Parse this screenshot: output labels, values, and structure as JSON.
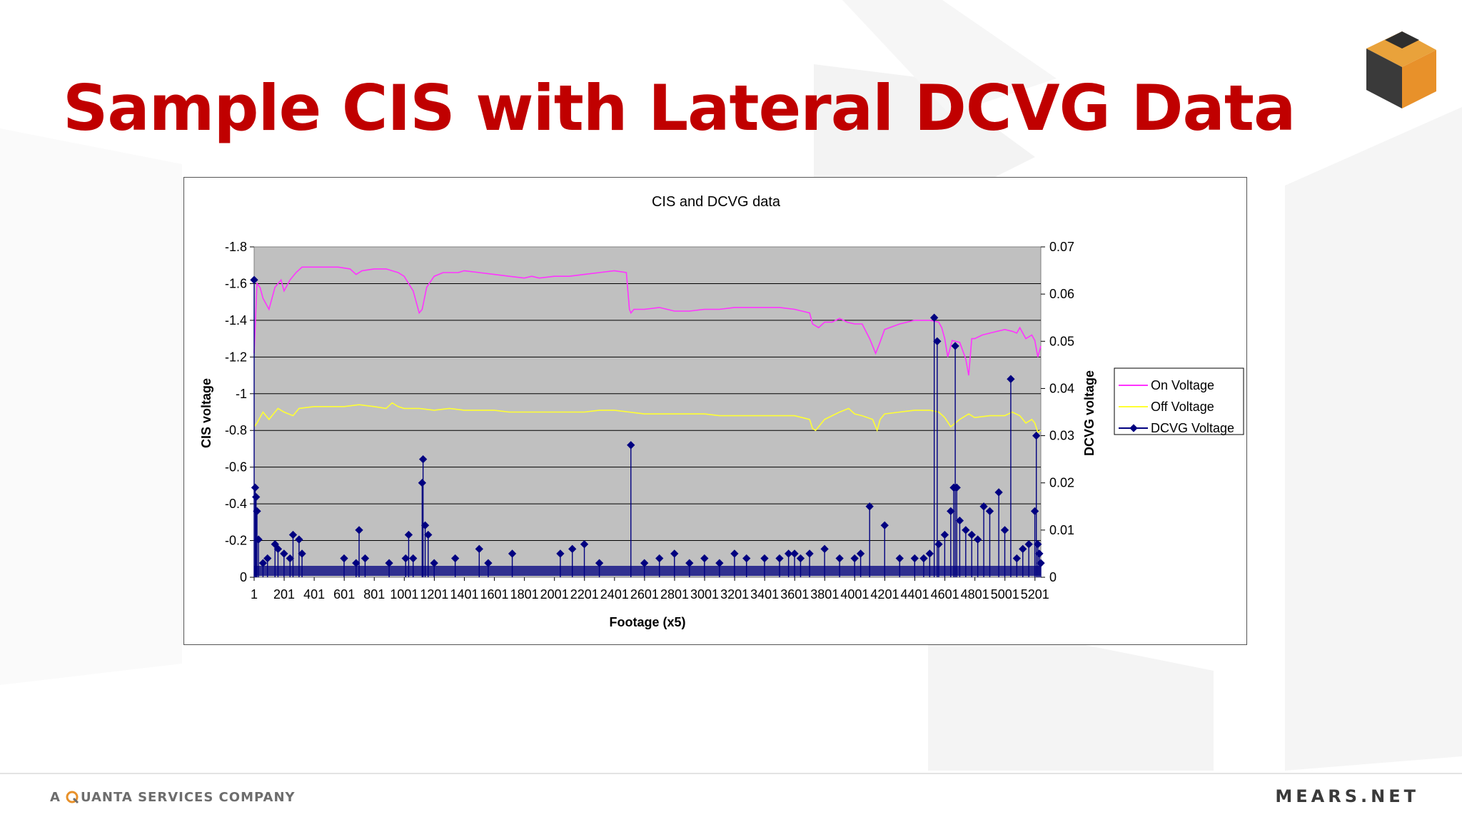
{
  "slide": {
    "title": "Sample CIS with Lateral DCVG Data",
    "footer_left_prefix": "A",
    "footer_left_company": "UANTA SERVICES COMPANY",
    "footer_right": "MEARS.NET"
  },
  "colors": {
    "title": "#c00000",
    "plot_bg": "#c0c0c0",
    "on_voltage": "#ff33ff",
    "off_voltage": "#ffff33",
    "dcvg_voltage": "#000080"
  },
  "icons": [
    "cube-logo-icon",
    "quanta-q-icon"
  ],
  "chart_data": {
    "type": "line",
    "title": "CIS and DCVG data",
    "xlabel": "Footage (x5)",
    "ylabel": "CIS voltage",
    "y2label": "DCVG voltage",
    "x_tick_labels": [
      "1",
      "201",
      "401",
      "601",
      "801",
      "1001",
      "1201",
      "1401",
      "1601",
      "1801",
      "2001",
      "2201",
      "2401",
      "2601",
      "2801",
      "3001",
      "3201",
      "3401",
      "3601",
      "3801",
      "4001",
      "4201",
      "4401",
      "4601",
      "4801",
      "5001",
      "5201"
    ],
    "x_range": [
      1,
      5240
    ],
    "y_range": [
      0,
      -1.8
    ],
    "y_ticks": [
      "-1.8",
      "-1.6",
      "-1.4",
      "-1.2",
      "-1",
      "-0.8",
      "-0.6",
      "-0.4",
      "-0.2",
      "0"
    ],
    "y2_range": [
      0,
      0.07
    ],
    "y2_ticks": [
      "0.07",
      "0.06",
      "0.05",
      "0.04",
      "0.03",
      "0.02",
      "0.01",
      "0"
    ],
    "grid": "horizontal",
    "legend_position": "right",
    "series": [
      {
        "name": "On Voltage",
        "axis": "left",
        "x": [
          1,
          20,
          40,
          60,
          100,
          140,
          180,
          200,
          240,
          280,
          320,
          400,
          480,
          560,
          640,
          680,
          720,
          800,
          880,
          960,
          1000,
          1060,
          1100,
          1120,
          1150,
          1200,
          1260,
          1300,
          1360,
          1400,
          1500,
          1600,
          1700,
          1800,
          1850,
          1900,
          2000,
          2100,
          2200,
          2300,
          2400,
          2480,
          2500,
          2510,
          2530,
          2600,
          2700,
          2800,
          2900,
          3000,
          3100,
          3200,
          3300,
          3400,
          3500,
          3600,
          3650,
          3700,
          3720,
          3760,
          3800,
          3850,
          3900,
          3950,
          4000,
          4050,
          4100,
          4140,
          4160,
          4200,
          4300,
          4400,
          4500,
          4560,
          4580,
          4600,
          4620,
          4650,
          4700,
          4740,
          4760,
          4780,
          4800,
          4850,
          4900,
          5000,
          5050,
          5080,
          5100,
          5140,
          5180,
          5200,
          5220,
          5240
        ],
        "values": [
          -1.22,
          -1.6,
          -1.58,
          -1.52,
          -1.46,
          -1.58,
          -1.62,
          -1.56,
          -1.62,
          -1.66,
          -1.69,
          -1.69,
          -1.69,
          -1.69,
          -1.68,
          -1.65,
          -1.67,
          -1.68,
          -1.68,
          -1.66,
          -1.64,
          -1.56,
          -1.44,
          -1.46,
          -1.58,
          -1.64,
          -1.66,
          -1.66,
          -1.66,
          -1.67,
          -1.66,
          -1.65,
          -1.64,
          -1.63,
          -1.64,
          -1.63,
          -1.64,
          -1.64,
          -1.65,
          -1.66,
          -1.67,
          -1.66,
          -1.46,
          -1.44,
          -1.46,
          -1.46,
          -1.47,
          -1.45,
          -1.45,
          -1.46,
          -1.46,
          -1.47,
          -1.47,
          -1.47,
          -1.47,
          -1.46,
          -1.45,
          -1.44,
          -1.38,
          -1.36,
          -1.39,
          -1.39,
          -1.41,
          -1.39,
          -1.38,
          -1.38,
          -1.3,
          -1.22,
          -1.26,
          -1.35,
          -1.38,
          -1.4,
          -1.4,
          -1.39,
          -1.36,
          -1.3,
          -1.2,
          -1.29,
          -1.28,
          -1.19,
          -1.1,
          -1.3,
          -1.3,
          -1.32,
          -1.33,
          -1.35,
          -1.34,
          -1.33,
          -1.36,
          -1.3,
          -1.32,
          -1.29,
          -1.2,
          -1.26
        ]
      },
      {
        "name": "Off Voltage",
        "axis": "left",
        "x": [
          1,
          20,
          60,
          100,
          160,
          200,
          260,
          300,
          400,
          500,
          600,
          700,
          800,
          880,
          920,
          960,
          1000,
          1100,
          1200,
          1300,
          1400,
          1500,
          1600,
          1700,
          1800,
          1900,
          2000,
          2100,
          2200,
          2300,
          2400,
          2500,
          2600,
          2700,
          2800,
          2900,
          3000,
          3100,
          3200,
          3300,
          3400,
          3500,
          3600,
          3650,
          3700,
          3720,
          3740,
          3800,
          3900,
          3960,
          4000,
          4050,
          4120,
          4150,
          4170,
          4200,
          4300,
          4400,
          4500,
          4560,
          4600,
          4640,
          4700,
          4760,
          4800,
          4900,
          5000,
          5050,
          5100,
          5140,
          5180,
          5200,
          5220,
          5240
        ],
        "values": [
          -0.82,
          -0.84,
          -0.9,
          -0.86,
          -0.92,
          -0.9,
          -0.88,
          -0.92,
          -0.93,
          -0.93,
          -0.93,
          -0.94,
          -0.93,
          -0.92,
          -0.95,
          -0.93,
          -0.92,
          -0.92,
          -0.91,
          -0.92,
          -0.91,
          -0.91,
          -0.91,
          -0.9,
          -0.9,
          -0.9,
          -0.9,
          -0.9,
          -0.9,
          -0.91,
          -0.91,
          -0.9,
          -0.89,
          -0.89,
          -0.89,
          -0.89,
          -0.89,
          -0.88,
          -0.88,
          -0.88,
          -0.88,
          -0.88,
          -0.88,
          -0.87,
          -0.86,
          -0.81,
          -0.8,
          -0.86,
          -0.9,
          -0.92,
          -0.89,
          -0.88,
          -0.86,
          -0.8,
          -0.86,
          -0.89,
          -0.9,
          -0.91,
          -0.91,
          -0.9,
          -0.87,
          -0.82,
          -0.86,
          -0.89,
          -0.87,
          -0.88,
          -0.88,
          -0.9,
          -0.88,
          -0.84,
          -0.86,
          -0.84,
          -0.79,
          -0.8
        ]
      },
      {
        "name": "DCVG Voltage",
        "axis": "right",
        "x": [
          1,
          8,
          14,
          20,
          30,
          60,
          90,
          140,
          160,
          200,
          240,
          260,
          300,
          320,
          600,
          680,
          700,
          740,
          900,
          1010,
          1030,
          1060,
          1120,
          1126,
          1140,
          1160,
          1200,
          1340,
          1500,
          1560,
          1720,
          2040,
          2120,
          2200,
          2300,
          2510,
          2600,
          2700,
          2800,
          2900,
          3000,
          3100,
          3200,
          3280,
          3400,
          3500,
          3560,
          3600,
          3640,
          3700,
          3800,
          3900,
          4000,
          4040,
          4100,
          4200,
          4300,
          4400,
          4460,
          4500,
          4530,
          4550,
          4560,
          4600,
          4640,
          4660,
          4670,
          4680,
          4700,
          4740,
          4780,
          4820,
          4860,
          4900,
          4960,
          5000,
          5040,
          5080,
          5120,
          5160,
          5200,
          5210,
          5220,
          5230,
          5240
        ],
        "values": [
          0.063,
          0.019,
          0.017,
          0.014,
          0.008,
          0.003,
          0.004,
          0.007,
          0.006,
          0.005,
          0.004,
          0.009,
          0.008,
          0.005,
          0.004,
          0.003,
          0.01,
          0.004,
          0.003,
          0.004,
          0.009,
          0.004,
          0.02,
          0.025,
          0.011,
          0.009,
          0.003,
          0.004,
          0.006,
          0.003,
          0.005,
          0.005,
          0.006,
          0.007,
          0.003,
          0.028,
          0.003,
          0.004,
          0.005,
          0.003,
          0.004,
          0.003,
          0.005,
          0.004,
          0.004,
          0.004,
          0.005,
          0.005,
          0.004,
          0.005,
          0.006,
          0.004,
          0.004,
          0.005,
          0.015,
          0.011,
          0.004,
          0.004,
          0.004,
          0.005,
          0.055,
          0.05,
          0.007,
          0.009,
          0.014,
          0.019,
          0.049,
          0.019,
          0.012,
          0.01,
          0.009,
          0.008,
          0.015,
          0.014,
          0.018,
          0.01,
          0.042,
          0.004,
          0.006,
          0.007,
          0.014,
          0.03,
          0.007,
          0.005,
          0.003
        ]
      }
    ]
  }
}
